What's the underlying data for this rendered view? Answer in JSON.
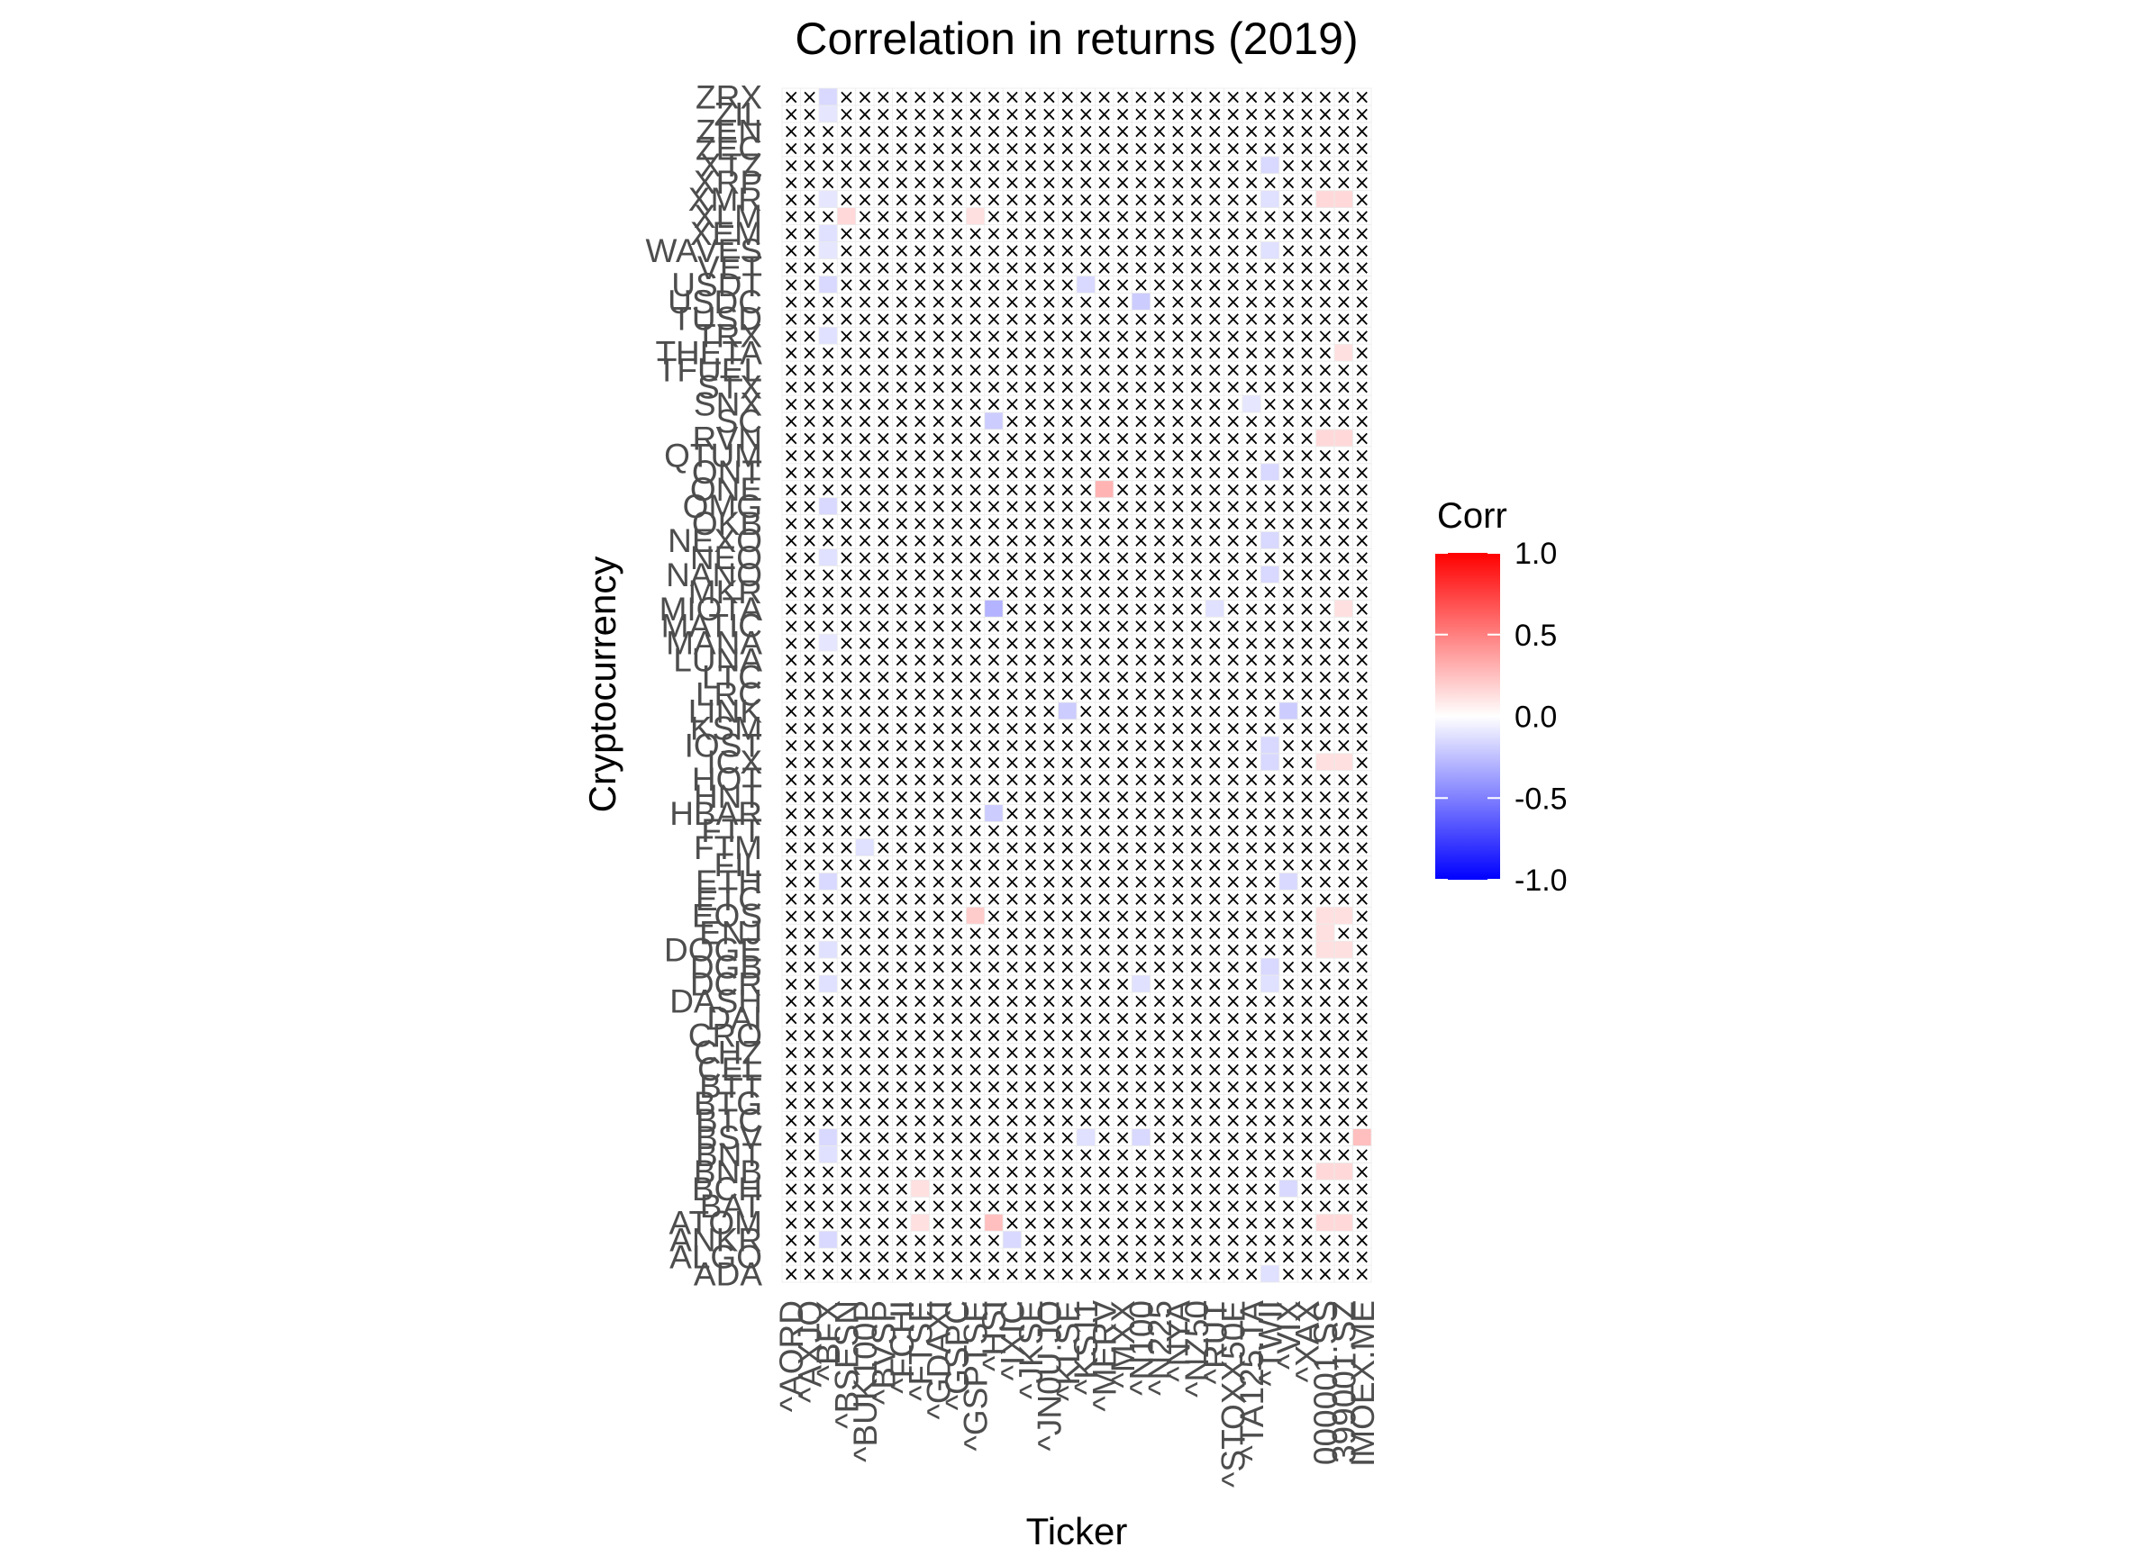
{
  "chart_data": {
    "type": "heatmap",
    "title": "Correlation in returns (2019)",
    "xlabel": "Ticker",
    "ylabel": "Cryptocurrency",
    "x_categories": [
      "^AORD",
      "^AXJO",
      "^BFX",
      "^BSESN",
      "^BUK100P",
      "^BVSP",
      "^FCHI",
      "^FTSE",
      "^GDAXI",
      "^GSPC",
      "^GSPTSE",
      "^HSI",
      "^IXIC",
      "^JKSE",
      "^JN0U.JO",
      "^KLSE",
      "^KS11",
      "^MERV",
      "^MXX",
      "^N100",
      "^N225",
      "^NYA",
      "^NZ50",
      "^RUT",
      "^STOXX50E",
      "^TA125.TA",
      "^TWII",
      "^VIX",
      "^XAX",
      "000001.SS",
      "399001.SZ",
      "IMOEX.ME"
    ],
    "y_categories": [
      "ADA",
      "ALGO",
      "ANKR",
      "ATOM",
      "BAT",
      "BCH",
      "BNB",
      "BNT",
      "BSV",
      "BTC",
      "BTG",
      "BTT",
      "CEL",
      "CHZ",
      "CRO",
      "DAI",
      "DASH",
      "DCR",
      "DGB",
      "DOGE",
      "ENJ",
      "EOS",
      "ETC",
      "ETH",
      "FIL",
      "FTM",
      "FTT",
      "HBAR",
      "HNT",
      "HOT",
      "ICX",
      "IOST",
      "KSM",
      "LINK",
      "LRC",
      "LTC",
      "LUNA",
      "MANA",
      "MATIC",
      "MIOTA",
      "MKR",
      "NANO",
      "NEO",
      "NEXO",
      "OKB",
      "OMG",
      "ONE",
      "ONT",
      "QTUM",
      "RVN",
      "SC",
      "SNX",
      "STX",
      "TFUEL",
      "THETA",
      "TRX",
      "TUSD",
      "USDC",
      "USDT",
      "VET",
      "WAVES",
      "XEM",
      "XLM",
      "XMR",
      "XRP",
      "XTZ",
      "ZEC",
      "ZEN",
      "ZIL",
      "ZRX"
    ],
    "legend": {
      "title": "Corr",
      "position": "right",
      "limits": [
        -1,
        1
      ],
      "ticks": [
        "1.0",
        "0.5",
        "0.0",
        "-0.5",
        "-1.0"
      ]
    },
    "color_scale": {
      "low": "#0000ff",
      "mid": "#ffffff",
      "high": "#ff0000"
    },
    "cross_mark": "×",
    "highlights": [
      {
        "x": "^BFX",
        "y": "ZRX",
        "value": -0.15
      },
      {
        "x": "^BFX",
        "y": "ZIL",
        "value": -0.1
      },
      {
        "x": "^BFX",
        "y": "XMR",
        "value": -0.1
      },
      {
        "x": "^BFX",
        "y": "XEM",
        "value": -0.12
      },
      {
        "x": "^BFX",
        "y": "WAVES",
        "value": -0.1
      },
      {
        "x": "^BFX",
        "y": "USDT",
        "value": -0.15
      },
      {
        "x": "^BFX",
        "y": "TRX",
        "value": -0.12
      },
      {
        "x": "^BFX",
        "y": "OMG",
        "value": -0.15
      },
      {
        "x": "^BFX",
        "y": "NEO",
        "value": -0.12
      },
      {
        "x": "^BFX",
        "y": "MANA",
        "value": -0.1
      },
      {
        "x": "^BFX",
        "y": "ETH",
        "value": -0.15
      },
      {
        "x": "^BFX",
        "y": "DOGE",
        "value": -0.12
      },
      {
        "x": "^BFX",
        "y": "DCR",
        "value": -0.12
      },
      {
        "x": "^BFX",
        "y": "BSV",
        "value": -0.15
      },
      {
        "x": "^BFX",
        "y": "BNT",
        "value": -0.12
      },
      {
        "x": "^BFX",
        "y": "ANKR",
        "value": -0.15
      },
      {
        "x": "^BSESN",
        "y": "XLM",
        "value": 0.15
      },
      {
        "x": "^BUK100P",
        "y": "FTM",
        "value": -0.12
      },
      {
        "x": "^FTSE",
        "y": "BCH",
        "value": 0.12
      },
      {
        "x": "^FTSE",
        "y": "ATOM",
        "value": 0.12
      },
      {
        "x": "^GSPTSE",
        "y": "EOS",
        "value": 0.2
      },
      {
        "x": "^GSPTSE",
        "y": "XLM",
        "value": 0.12
      },
      {
        "x": "^HSI",
        "y": "MIOTA",
        "value": -0.3
      },
      {
        "x": "^HSI",
        "y": "SC",
        "value": -0.2
      },
      {
        "x": "^HSI",
        "y": "HBAR",
        "value": -0.2
      },
      {
        "x": "^HSI",
        "y": "ATOM",
        "value": 0.25
      },
      {
        "x": "^IXIC",
        "y": "ANKR",
        "value": -0.15
      },
      {
        "x": "^KLSE",
        "y": "LINK",
        "value": -0.2
      },
      {
        "x": "^KS11",
        "y": "USDT",
        "value": -0.15
      },
      {
        "x": "^KS11",
        "y": "BSV",
        "value": -0.12
      },
      {
        "x": "^MERV",
        "y": "ONE",
        "value": 0.3
      },
      {
        "x": "^N100",
        "y": "USDC",
        "value": -0.2
      },
      {
        "x": "^N100",
        "y": "BSV",
        "value": -0.15
      },
      {
        "x": "^N100",
        "y": "DCR",
        "value": -0.12
      },
      {
        "x": "^RUT",
        "y": "MIOTA",
        "value": -0.12
      },
      {
        "x": "^TA125.TA",
        "y": "SNX",
        "value": -0.1
      },
      {
        "x": "^TWII",
        "y": "XTZ",
        "value": -0.15
      },
      {
        "x": "^TWII",
        "y": "XMR",
        "value": -0.12
      },
      {
        "x": "^TWII",
        "y": "WAVES",
        "value": -0.12
      },
      {
        "x": "^TWII",
        "y": "ONT",
        "value": -0.15
      },
      {
        "x": "^TWII",
        "y": "NEXO",
        "value": -0.15
      },
      {
        "x": "^TWII",
        "y": "NANO",
        "value": -0.15
      },
      {
        "x": "^TWII",
        "y": "ICX",
        "value": -0.15
      },
      {
        "x": "^TWII",
        "y": "IOST",
        "value": -0.15
      },
      {
        "x": "^TWII",
        "y": "DGB",
        "value": -0.15
      },
      {
        "x": "^TWII",
        "y": "DCR",
        "value": -0.12
      },
      {
        "x": "^TWII",
        "y": "ADA",
        "value": -0.12
      },
      {
        "x": "^VIX",
        "y": "LINK",
        "value": -0.2
      },
      {
        "x": "^VIX",
        "y": "ETH",
        "value": -0.15
      },
      {
        "x": "^VIX",
        "y": "BCH",
        "value": -0.15
      },
      {
        "x": "000001.SS",
        "y": "XMR",
        "value": 0.15
      },
      {
        "x": "000001.SS",
        "y": "RVN",
        "value": 0.15
      },
      {
        "x": "000001.SS",
        "y": "ICX",
        "value": 0.12
      },
      {
        "x": "000001.SS",
        "y": "EOS",
        "value": 0.12
      },
      {
        "x": "000001.SS",
        "y": "ENJ",
        "value": 0.12
      },
      {
        "x": "000001.SS",
        "y": "DOGE",
        "value": 0.12
      },
      {
        "x": "000001.SS",
        "y": "BNB",
        "value": 0.15
      },
      {
        "x": "000001.SS",
        "y": "ATOM",
        "value": 0.15
      },
      {
        "x": "399001.SZ",
        "y": "XMR",
        "value": 0.15
      },
      {
        "x": "399001.SZ",
        "y": "THETA",
        "value": 0.12
      },
      {
        "x": "399001.SZ",
        "y": "RVN",
        "value": 0.15
      },
      {
        "x": "399001.SZ",
        "y": "MIOTA",
        "value": 0.12
      },
      {
        "x": "399001.SZ",
        "y": "ICX",
        "value": 0.12
      },
      {
        "x": "399001.SZ",
        "y": "EOS",
        "value": 0.12
      },
      {
        "x": "399001.SZ",
        "y": "DOGE",
        "value": 0.12
      },
      {
        "x": "399001.SZ",
        "y": "BNB",
        "value": 0.15
      },
      {
        "x": "399001.SZ",
        "y": "ATOM",
        "value": 0.15
      },
      {
        "x": "IMOEX.ME",
        "y": "BSV",
        "value": 0.25
      }
    ]
  }
}
